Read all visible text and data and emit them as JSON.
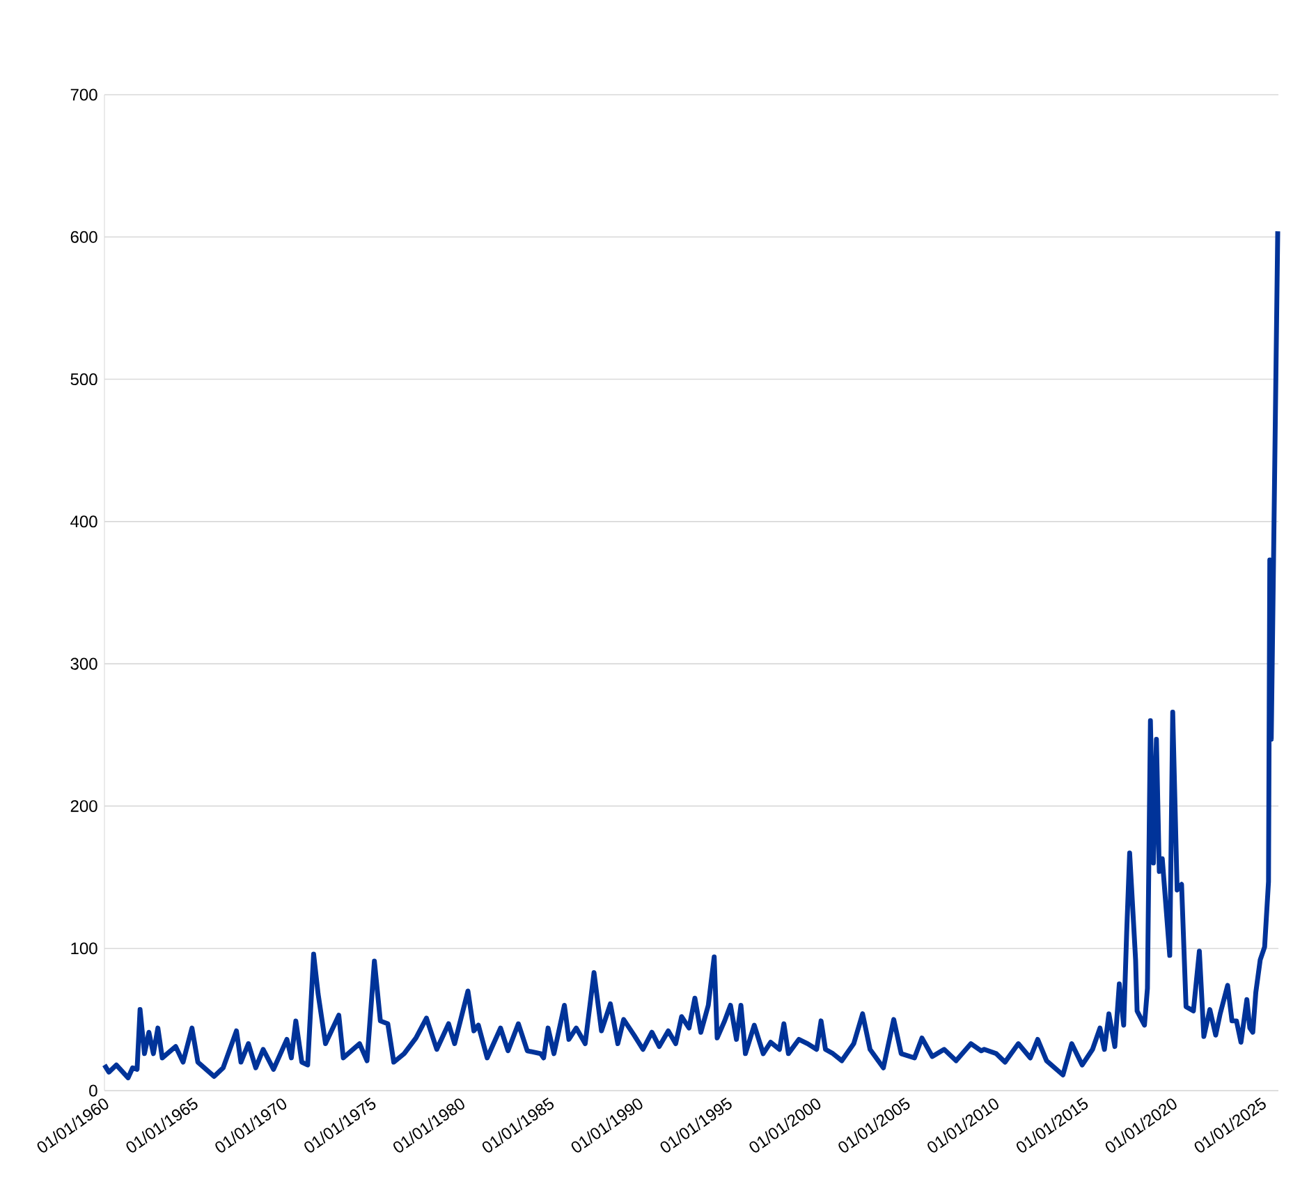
{
  "chart_data": {
    "type": "line",
    "color": "#003399",
    "grid": "y",
    "xlim": [
      "1960-01-01",
      "2025-12-09"
    ],
    "ylim": [
      0,
      700
    ],
    "yticks": [
      0,
      100,
      200,
      300,
      400,
      500,
      600,
      700
    ],
    "xticks": [
      {
        "value": "1960-01-01",
        "label": "01/01/1960"
      },
      {
        "value": "1965-01-01",
        "label": "01/01/1965"
      },
      {
        "value": "1970-01-01",
        "label": "01/01/1970"
      },
      {
        "value": "1975-01-01",
        "label": "01/01/1975"
      },
      {
        "value": "1980-01-01",
        "label": "01/01/1980"
      },
      {
        "value": "1985-01-01",
        "label": "01/01/1985"
      },
      {
        "value": "1990-01-01",
        "label": "01/01/1990"
      },
      {
        "value": "1995-01-01",
        "label": "01/01/1995"
      },
      {
        "value": "2000-01-01",
        "label": "01/01/2000"
      },
      {
        "value": "2005-01-01",
        "label": "01/01/2005"
      },
      {
        "value": "2010-01-01",
        "label": "01/01/2010"
      },
      {
        "value": "2015-01-01",
        "label": "01/01/2015"
      },
      {
        "value": "2020-01-01",
        "label": "01/01/2020"
      },
      {
        "value": "2025-01-01",
        "label": "01/01/2025"
      }
    ],
    "x": [
      "1960-01",
      "1960-04",
      "1960-09",
      "1961-05",
      "1961-08",
      "1961-11",
      "1962-01",
      "1962-04",
      "1962-07",
      "1962-10",
      "1963-01",
      "1963-04",
      "1964-01",
      "1964-06",
      "1964-12",
      "1965-04",
      "1966-03",
      "1966-09",
      "1967-06",
      "1967-09",
      "1968-02",
      "1968-07",
      "1968-12",
      "1969-07",
      "1970-04",
      "1970-07",
      "1970-10",
      "1971-02",
      "1971-06",
      "1971-10",
      "1972-01",
      "1972-06",
      "1973-03",
      "1973-06",
      "1974-05",
      "1974-10",
      "1975-03",
      "1975-07",
      "1975-12",
      "1976-04",
      "1976-11",
      "1977-07",
      "1978-02",
      "1978-09",
      "1979-05",
      "1979-09",
      "1980-06",
      "1980-10",
      "1981-01",
      "1981-07",
      "1982-04",
      "1982-09",
      "1983-04",
      "1983-10",
      "1984-07",
      "1984-09",
      "1984-12",
      "1985-04",
      "1985-11",
      "1986-02",
      "1986-07",
      "1987-01",
      "1987-07",
      "1987-12",
      "1988-06",
      "1988-11",
      "1989-03",
      "1989-10",
      "1990-04",
      "1990-10",
      "1991-03",
      "1991-09",
      "1992-02",
      "1992-06",
      "1992-11",
      "1993-03",
      "1993-07",
      "1993-12",
      "1994-04",
      "1994-06",
      "1994-11",
      "1995-03",
      "1995-07",
      "1995-10",
      "1996-01",
      "1996-07",
      "1997-01",
      "1997-06",
      "1997-12",
      "1998-03",
      "1998-06",
      "1999-01",
      "1999-07",
      "2000-01",
      "2000-04",
      "2000-07",
      "2000-12",
      "2001-06",
      "2002-02",
      "2002-08",
      "2003-01",
      "2003-10",
      "2004-05",
      "2004-10",
      "2005-07",
      "2005-12",
      "2006-07",
      "2007-03",
      "2007-11",
      "2008-09",
      "2009-04",
      "2009-06",
      "2010-02",
      "2010-08",
      "2011-05",
      "2012-01",
      "2012-06",
      "2012-12",
      "2013-11",
      "2014-05",
      "2014-12",
      "2015-07",
      "2015-12",
      "2016-03",
      "2016-06",
      "2016-10",
      "2017-01",
      "2017-04",
      "2017-06",
      "2017-08",
      "2017-12",
      "2018-01",
      "2018-06",
      "2018-08",
      "2018-10",
      "2018-12",
      "2019-02",
      "2019-04",
      "2019-06",
      "2019-11",
      "2020-01",
      "2020-04",
      "2020-07",
      "2020-10",
      "2021-03",
      "2021-07",
      "2021-10",
      "2022-02",
      "2022-06",
      "2022-09",
      "2023-02",
      "2023-05",
      "2023-08",
      "2023-11",
      "2024-03",
      "2024-05",
      "2024-07",
      "2024-09",
      "2024-12",
      "2025-03",
      "2025-05-20",
      "2025-06-15",
      "2025-07-15",
      "2025-11-25"
    ],
    "values": [
      18,
      13,
      18,
      9,
      16,
      15,
      57,
      26,
      41,
      26,
      44,
      23,
      31,
      20,
      44,
      20,
      10,
      16,
      42,
      20,
      33,
      16,
      29,
      15,
      36,
      23,
      49,
      20,
      18,
      96,
      68,
      33,
      53,
      23,
      33,
      21,
      91,
      49,
      47,
      20,
      26,
      37,
      51,
      29,
      47,
      33,
      70,
      42,
      46,
      23,
      44,
      28,
      47,
      28,
      26,
      23,
      44,
      26,
      60,
      36,
      44,
      33,
      83,
      42,
      61,
      33,
      50,
      39,
      29,
      41,
      31,
      42,
      33,
      52,
      44,
      65,
      41,
      60,
      94,
      37,
      49,
      60,
      36,
      60,
      26,
      46,
      26,
      34,
      29,
      47,
      26,
      36,
      33,
      29,
      49,
      29,
      26,
      21,
      33,
      54,
      29,
      16,
      50,
      26,
      23,
      37,
      24,
      29,
      21,
      33,
      28,
      29,
      26,
      20,
      33,
      23,
      36,
      21,
      11,
      33,
      18,
      29,
      44,
      29,
      54,
      31,
      75,
      46,
      111,
      167,
      92,
      56,
      46,
      72,
      260,
      160,
      247,
      154,
      163,
      95,
      266,
      141,
      145,
      59,
      56,
      98,
      38,
      57,
      39,
      54,
      74,
      49,
      49,
      34,
      64,
      44,
      41,
      69,
      92,
      101,
      147,
      373,
      247,
      604
    ]
  }
}
